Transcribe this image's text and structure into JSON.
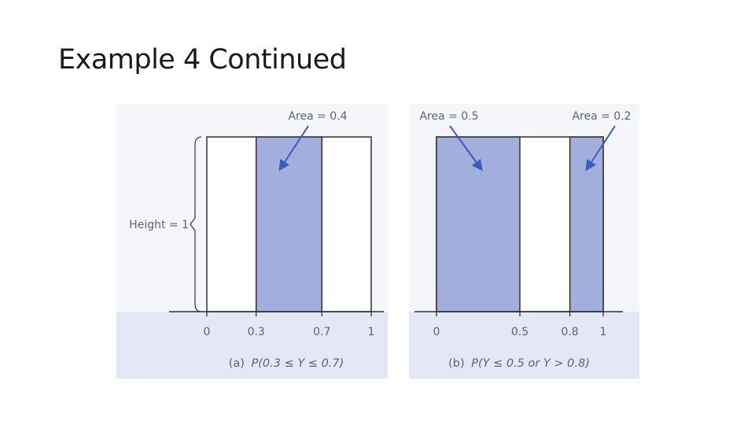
{
  "slide": {
    "title": "Example 4 Continued"
  },
  "colors": {
    "shade": "#a2aedb",
    "panel_bg": "#f4f6fa",
    "caption_band": "#e4e8f5",
    "outline": "#303030",
    "arrow": "#3a5bc0",
    "text": "#5c6470"
  },
  "chart_data": [
    {
      "type": "area",
      "distribution": "uniform",
      "density_height": 1,
      "x_range": [
        0,
        1
      ],
      "xticks": [
        "0",
        "0.3",
        "0.7",
        "1"
      ],
      "height_label": "Height = 1",
      "shaded": [
        [
          0.3,
          0.7
        ]
      ],
      "annotations": [
        {
          "text": "Area = 0.4",
          "region": [
            0.3,
            0.7
          ]
        }
      ],
      "caption_tag": "(a)",
      "caption_expr": "P(0.3 ≤ Y ≤ 0.7)"
    },
    {
      "type": "area",
      "distribution": "uniform",
      "density_height": 1,
      "x_range": [
        0,
        1
      ],
      "xticks": [
        "0",
        "0.5",
        "0.8",
        "1"
      ],
      "shaded": [
        [
          0,
          0.5
        ],
        [
          0.8,
          1
        ]
      ],
      "annotations": [
        {
          "text": "Area = 0.5",
          "region": [
            0,
            0.5
          ]
        },
        {
          "text": "Area = 0.2",
          "region": [
            0.8,
            1
          ]
        }
      ],
      "caption_tag": "(b)",
      "caption_expr": "P(Y ≤ 0.5 or Y > 0.8)"
    }
  ]
}
